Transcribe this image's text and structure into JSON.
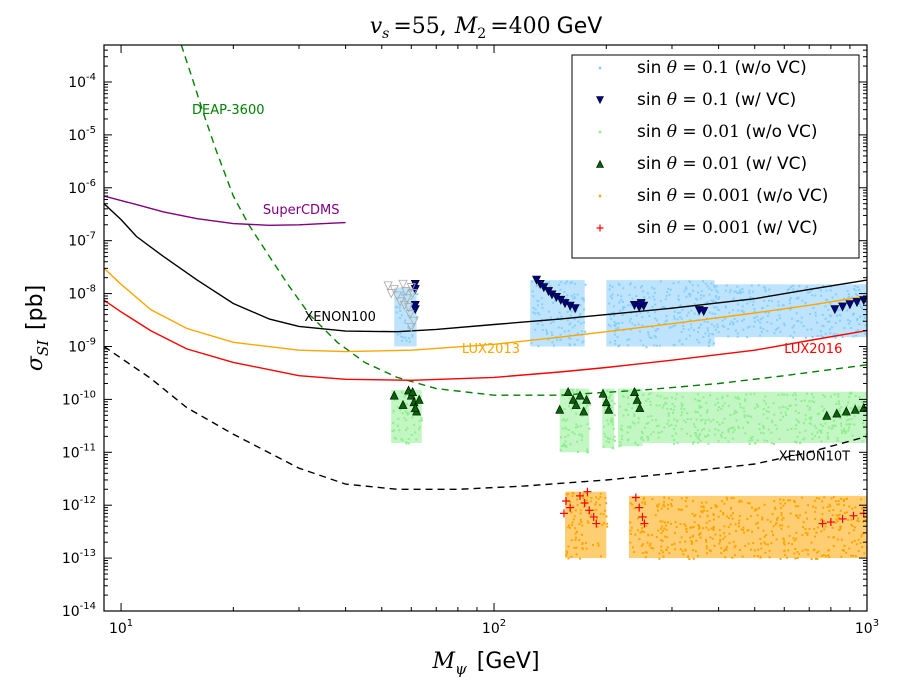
{
  "chart_data": {
    "type": "scatter",
    "title": "v_s = 55, M_2 = 400 GeV",
    "title_parts": {
      "vs_label": "v",
      "vs_sub": "s",
      "vs_value": "=55,",
      "m2_label": "M",
      "m2_sub": "2",
      "m2_value": "=400",
      "unit": "GeV"
    },
    "xlabel": "M_ψ [GeV]",
    "xlabel_parts": {
      "symbol": "M",
      "sub": "ψ",
      "unit": "[GeV]"
    },
    "ylabel": "σ_SI [pb]",
    "ylabel_parts": {
      "symbol": "σ",
      "sub": "SI",
      "unit": "[pb]"
    },
    "x_scale": "log",
    "y_scale": "log",
    "xlim": [
      9,
      1000
    ],
    "ylim": [
      1e-14,
      0.0005
    ],
    "x_ticks": [
      {
        "value": 10,
        "base": "10",
        "exp": "1"
      },
      {
        "value": 100,
        "base": "10",
        "exp": "2"
      },
      {
        "value": 1000,
        "base": "10",
        "exp": "3"
      }
    ],
    "y_ticks": [
      {
        "value": 1e-14,
        "base": "10",
        "exp": "-14"
      },
      {
        "value": 1e-13,
        "base": "10",
        "exp": "-13"
      },
      {
        "value": 1e-12,
        "base": "10",
        "exp": "-12"
      },
      {
        "value": 1e-11,
        "base": "10",
        "exp": "-11"
      },
      {
        "value": 1e-10,
        "base": "10",
        "exp": "-10"
      },
      {
        "value": 1e-09,
        "base": "10",
        "exp": "-9"
      },
      {
        "value": 1e-08,
        "base": "10",
        "exp": "-8"
      },
      {
        "value": 1e-07,
        "base": "10",
        "exp": "-7"
      },
      {
        "value": 1e-06,
        "base": "10",
        "exp": "-6"
      },
      {
        "value": 1e-05,
        "base": "10",
        "exp": "-5"
      },
      {
        "value": 0.0001,
        "base": "10",
        "exp": "-4"
      }
    ],
    "grid": false,
    "legend_position": "top-right",
    "curves": [
      {
        "name": "DEAP-3600",
        "color": "#008000",
        "dash": true,
        "label": {
          "text": "DEAP-3600",
          "x": 15.5,
          "y": 2.5e-05
        },
        "points": [
          [
            14.5,
            0.0005
          ],
          [
            15.5,
            0.00012
          ],
          [
            16.5,
            3e-05
          ],
          [
            18,
            5e-06
          ],
          [
            20,
            7e-07
          ],
          [
            22,
            2e-07
          ],
          [
            25,
            5e-08
          ],
          [
            28,
            1.5e-08
          ],
          [
            32,
            4e-09
          ],
          [
            38,
            1.2e-09
          ],
          [
            45,
            5e-10
          ],
          [
            55,
            2.6e-10
          ],
          [
            70,
            1.6e-10
          ],
          [
            100,
            1.2e-10
          ],
          [
            150,
            1.2e-10
          ],
          [
            250,
            1.5e-10
          ],
          [
            400,
            2e-10
          ],
          [
            600,
            2.8e-10
          ],
          [
            1000,
            4.5e-10
          ]
        ]
      },
      {
        "name": "SuperCDMS",
        "color": "#800080",
        "dash": false,
        "label": {
          "text": "SuperCDMS",
          "x": 24,
          "y": 3.2e-07
        },
        "points": [
          [
            9,
            7e-07
          ],
          [
            11,
            4.8e-07
          ],
          [
            13,
            3.5e-07
          ],
          [
            16,
            2.6e-07
          ],
          [
            20,
            2.1e-07
          ],
          [
            25,
            1.95e-07
          ],
          [
            30,
            2e-07
          ],
          [
            35,
            2.1e-07
          ],
          [
            40,
            2.2e-07
          ]
        ]
      },
      {
        "name": "XENON100",
        "color": "#000000",
        "dash": false,
        "label": {
          "text": "XENON100",
          "x": 31,
          "y": 3e-09
        },
        "points": [
          [
            9,
            5e-07
          ],
          [
            10,
            2.5e-07
          ],
          [
            11,
            1.2e-07
          ],
          [
            13,
            5e-08
          ],
          [
            16,
            1.8e-08
          ],
          [
            20,
            6.5e-09
          ],
          [
            25,
            3.3e-09
          ],
          [
            30,
            2.4e-09
          ],
          [
            40,
            1.95e-09
          ],
          [
            55,
            1.9e-09
          ],
          [
            70,
            2.1e-09
          ],
          [
            100,
            2.6e-09
          ],
          [
            150,
            3.3e-09
          ],
          [
            200,
            4e-09
          ],
          [
            300,
            5.3e-09
          ],
          [
            500,
            8e-09
          ],
          [
            700,
            1.2e-08
          ],
          [
            1000,
            1.8e-08
          ]
        ]
      },
      {
        "name": "LUX2013",
        "color": "#FFA500",
        "dash": false,
        "label": {
          "text": "LUX2013",
          "x": 82,
          "y": 7.5e-10
        },
        "points": [
          [
            9,
            3e-08
          ],
          [
            10,
            1.5e-08
          ],
          [
            12,
            5e-09
          ],
          [
            15,
            2.2e-09
          ],
          [
            20,
            1.2e-09
          ],
          [
            30,
            8.5e-10
          ],
          [
            40,
            8e-10
          ],
          [
            60,
            8.5e-10
          ],
          [
            100,
            1.1e-09
          ],
          [
            150,
            1.5e-09
          ],
          [
            200,
            1.9e-09
          ],
          [
            300,
            2.7e-09
          ],
          [
            500,
            4.3e-09
          ],
          [
            700,
            6e-09
          ],
          [
            1000,
            9e-09
          ]
        ]
      },
      {
        "name": "LUX2016",
        "color": "#FF0000",
        "dash": false,
        "label": {
          "text": "LUX2016",
          "x": 600,
          "y": 7.5e-10
        },
        "points": [
          [
            9,
            7.5e-09
          ],
          [
            10,
            4.5e-09
          ],
          [
            12,
            2e-09
          ],
          [
            15,
            9e-10
          ],
          [
            20,
            5e-10
          ],
          [
            30,
            2.8e-10
          ],
          [
            40,
            2.4e-10
          ],
          [
            60,
            2.3e-10
          ],
          [
            100,
            2.6e-10
          ],
          [
            150,
            3.3e-10
          ],
          [
            200,
            4e-10
          ],
          [
            300,
            5.5e-10
          ],
          [
            500,
            8.5e-10
          ],
          [
            700,
            1.3e-09
          ],
          [
            1000,
            2e-09
          ]
        ]
      },
      {
        "name": "XENON10T",
        "color": "#000000",
        "dash": true,
        "label": {
          "text": "XENON10T",
          "x": 580,
          "y": 7e-12
        },
        "points": [
          [
            9,
            1e-09
          ],
          [
            10,
            6e-10
          ],
          [
            12,
            2.5e-10
          ],
          [
            15,
            7e-11
          ],
          [
            20,
            2.2e-11
          ],
          [
            30,
            5e-12
          ],
          [
            40,
            2.5e-12
          ],
          [
            55,
            2e-12
          ],
          [
            80,
            2e-12
          ],
          [
            120,
            2.3e-12
          ],
          [
            200,
            3e-12
          ],
          [
            300,
            4e-12
          ],
          [
            500,
            6e-12
          ],
          [
            700,
            1e-11
          ],
          [
            1000,
            2e-11
          ]
        ]
      }
    ],
    "series": [
      {
        "name": "sin θ = 0.1 (w/o VC)",
        "legend": {
          "prefix": "sin",
          "theta": "θ",
          "value": "= 0.1",
          "suffix": "(w/o VC)"
        },
        "color": "#87CEFA",
        "marker": "square",
        "regions": [
          {
            "xmin": 54,
            "xmax": 62,
            "ymin": 1e-09,
            "ymax": 1.3e-08
          },
          {
            "xmin": 125,
            "xmax": 175,
            "ymin": 1e-09,
            "ymax": 1.8e-08
          },
          {
            "xmin": 200,
            "xmax": 390,
            "ymin": 1e-09,
            "ymax": 1.8e-08
          },
          {
            "xmin": 390,
            "xmax": 1000,
            "ymin": 1.5e-09,
            "ymax": 1.5e-08
          }
        ]
      },
      {
        "name": "sin θ = 0.1 (w/ VC)",
        "legend": {
          "prefix": "sin",
          "theta": "θ",
          "value": "= 0.1",
          "suffix": "(w/ VC)"
        },
        "color": "#00008B",
        "marker": "triangle-down",
        "points": [
          [
            61.5,
            1.5e-08
          ],
          [
            61.5,
            1.2e-08
          ],
          [
            61.5,
            6e-09
          ],
          [
            61.5,
            5e-09
          ],
          [
            130,
            1.8e-08
          ],
          [
            133,
            1.5e-08
          ],
          [
            136,
            1.3e-08
          ],
          [
            140,
            1.1e-08
          ],
          [
            143,
            9.5e-09
          ],
          [
            147,
            8.5e-09
          ],
          [
            151,
            7.5e-09
          ],
          [
            155,
            6.5e-09
          ],
          [
            160,
            5.8e-09
          ],
          [
            165,
            5.2e-09
          ],
          [
            238,
            6e-09
          ],
          [
            245,
            5.5e-09
          ],
          [
            252,
            5.8e-09
          ],
          [
            248,
            6.5e-09
          ],
          [
            355,
            4.8e-09
          ],
          [
            365,
            4.6e-09
          ],
          [
            820,
            5e-09
          ],
          [
            860,
            5.6e-09
          ],
          [
            900,
            6.2e-09
          ],
          [
            940,
            6.8e-09
          ],
          [
            980,
            7.4e-09
          ]
        ]
      },
      {
        "name": "sin θ = 0.01 (w/o VC)",
        "legend": {
          "prefix": "sin",
          "theta": "θ",
          "value": "= 0.01",
          "suffix": "(w/o VC)"
        },
        "color": "#90EE90",
        "marker": "square",
        "regions": [
          {
            "xmin": 53,
            "xmax": 64,
            "ymin": 1.5e-11,
            "ymax": 1.5e-10
          },
          {
            "xmin": 150,
            "xmax": 180,
            "ymin": 1e-11,
            "ymax": 1.6e-10
          },
          {
            "xmin": 195,
            "xmax": 210,
            "ymin": 1.2e-11,
            "ymax": 1.6e-10
          },
          {
            "xmin": 215,
            "xmax": 250,
            "ymin": 1.3e-11,
            "ymax": 1.6e-10
          },
          {
            "xmin": 250,
            "xmax": 1000,
            "ymin": 1.5e-11,
            "ymax": 1.4e-10
          }
        ]
      },
      {
        "name": "sin θ = 0.01 (w/ VC)",
        "legend": {
          "prefix": "sin",
          "theta": "θ",
          "value": "= 0.01",
          "suffix": "(w/ VC)"
        },
        "color": "#006400",
        "marker": "triangle-up",
        "points": [
          [
            54,
            1.2e-10
          ],
          [
            57,
            8e-11
          ],
          [
            59,
            1.5e-10
          ],
          [
            60,
            1.2e-10
          ],
          [
            61,
            9e-11
          ],
          [
            62,
            6e-11
          ],
          [
            63,
            1e-10
          ],
          [
            60.5,
            1.4e-10
          ],
          [
            61.5,
            7e-11
          ],
          [
            150,
            6.5e-11
          ],
          [
            158,
            1.4e-10
          ],
          [
            163,
            1e-10
          ],
          [
            166,
            8e-11
          ],
          [
            170,
            1.2e-10
          ],
          [
            174,
            6e-11
          ],
          [
            177,
            1e-10
          ],
          [
            196,
            1.3e-10
          ],
          [
            200,
            9e-11
          ],
          [
            203,
            6.5e-11
          ],
          [
            238,
            1.4e-10
          ],
          [
            242,
            1e-10
          ],
          [
            246,
            7e-11
          ],
          [
            780,
            5e-11
          ],
          [
            830,
            5.5e-11
          ],
          [
            880,
            6e-11
          ],
          [
            930,
            6.5e-11
          ],
          [
            980,
            7e-11
          ]
        ]
      },
      {
        "name": "sin θ = 0.001 (w/o VC)",
        "legend": {
          "prefix": "sin",
          "theta": "θ",
          "value": "= 0.001",
          "suffix": "(w/o VC)"
        },
        "color": "#FFA500",
        "marker": "square",
        "regions": [
          {
            "xmin": 155,
            "xmax": 200,
            "ymin": 1e-13,
            "ymax": 1.8e-12
          },
          {
            "xmin": 230,
            "xmax": 1000,
            "ymin": 1e-13,
            "ymax": 1.5e-12
          }
        ]
      },
      {
        "name": "sin θ = 0.001 (w/ VC)",
        "legend": {
          "prefix": "sin",
          "theta": "θ",
          "value": "= 0.001",
          "suffix": "(w/ VC)"
        },
        "color": "#FF0000",
        "marker": "plus",
        "points": [
          [
            154,
            7e-13
          ],
          [
            156,
            1.2e-12
          ],
          [
            160,
            9e-13
          ],
          [
            170,
            1.5e-12
          ],
          [
            175,
            1.1e-12
          ],
          [
            180,
            8e-13
          ],
          [
            185,
            6e-13
          ],
          [
            188,
            4.5e-13
          ],
          [
            178,
            1.8e-12
          ],
          [
            240,
            1.4e-12
          ],
          [
            245,
            9e-13
          ],
          [
            250,
            6e-13
          ],
          [
            253,
            4.5e-13
          ],
          [
            760,
            4.5e-13
          ],
          [
            800,
            4.8e-13
          ],
          [
            860,
            5.5e-13
          ],
          [
            920,
            6.3e-13
          ],
          [
            980,
            7e-13
          ]
        ]
      },
      {
        "name": "(unlabeled grey)",
        "color": "#A9A9A9",
        "marker": "triangle-down-open",
        "points": [
          [
            52,
            1.4e-08
          ],
          [
            54,
            1.2e-08
          ],
          [
            55,
            9e-09
          ],
          [
            56,
            7e-09
          ],
          [
            57,
            1.5e-08
          ],
          [
            58,
            1.1e-08
          ],
          [
            58.5,
            8e-09
          ],
          [
            59,
            5.5e-09
          ],
          [
            59.5,
            4e-09
          ],
          [
            60,
            1.3e-08
          ],
          [
            60.5,
            1e-08
          ],
          [
            61,
            3e-09
          ],
          [
            60,
            2.3e-09
          ],
          [
            57.5,
            6e-09
          ],
          [
            53,
            1e-08
          ]
        ]
      }
    ]
  }
}
